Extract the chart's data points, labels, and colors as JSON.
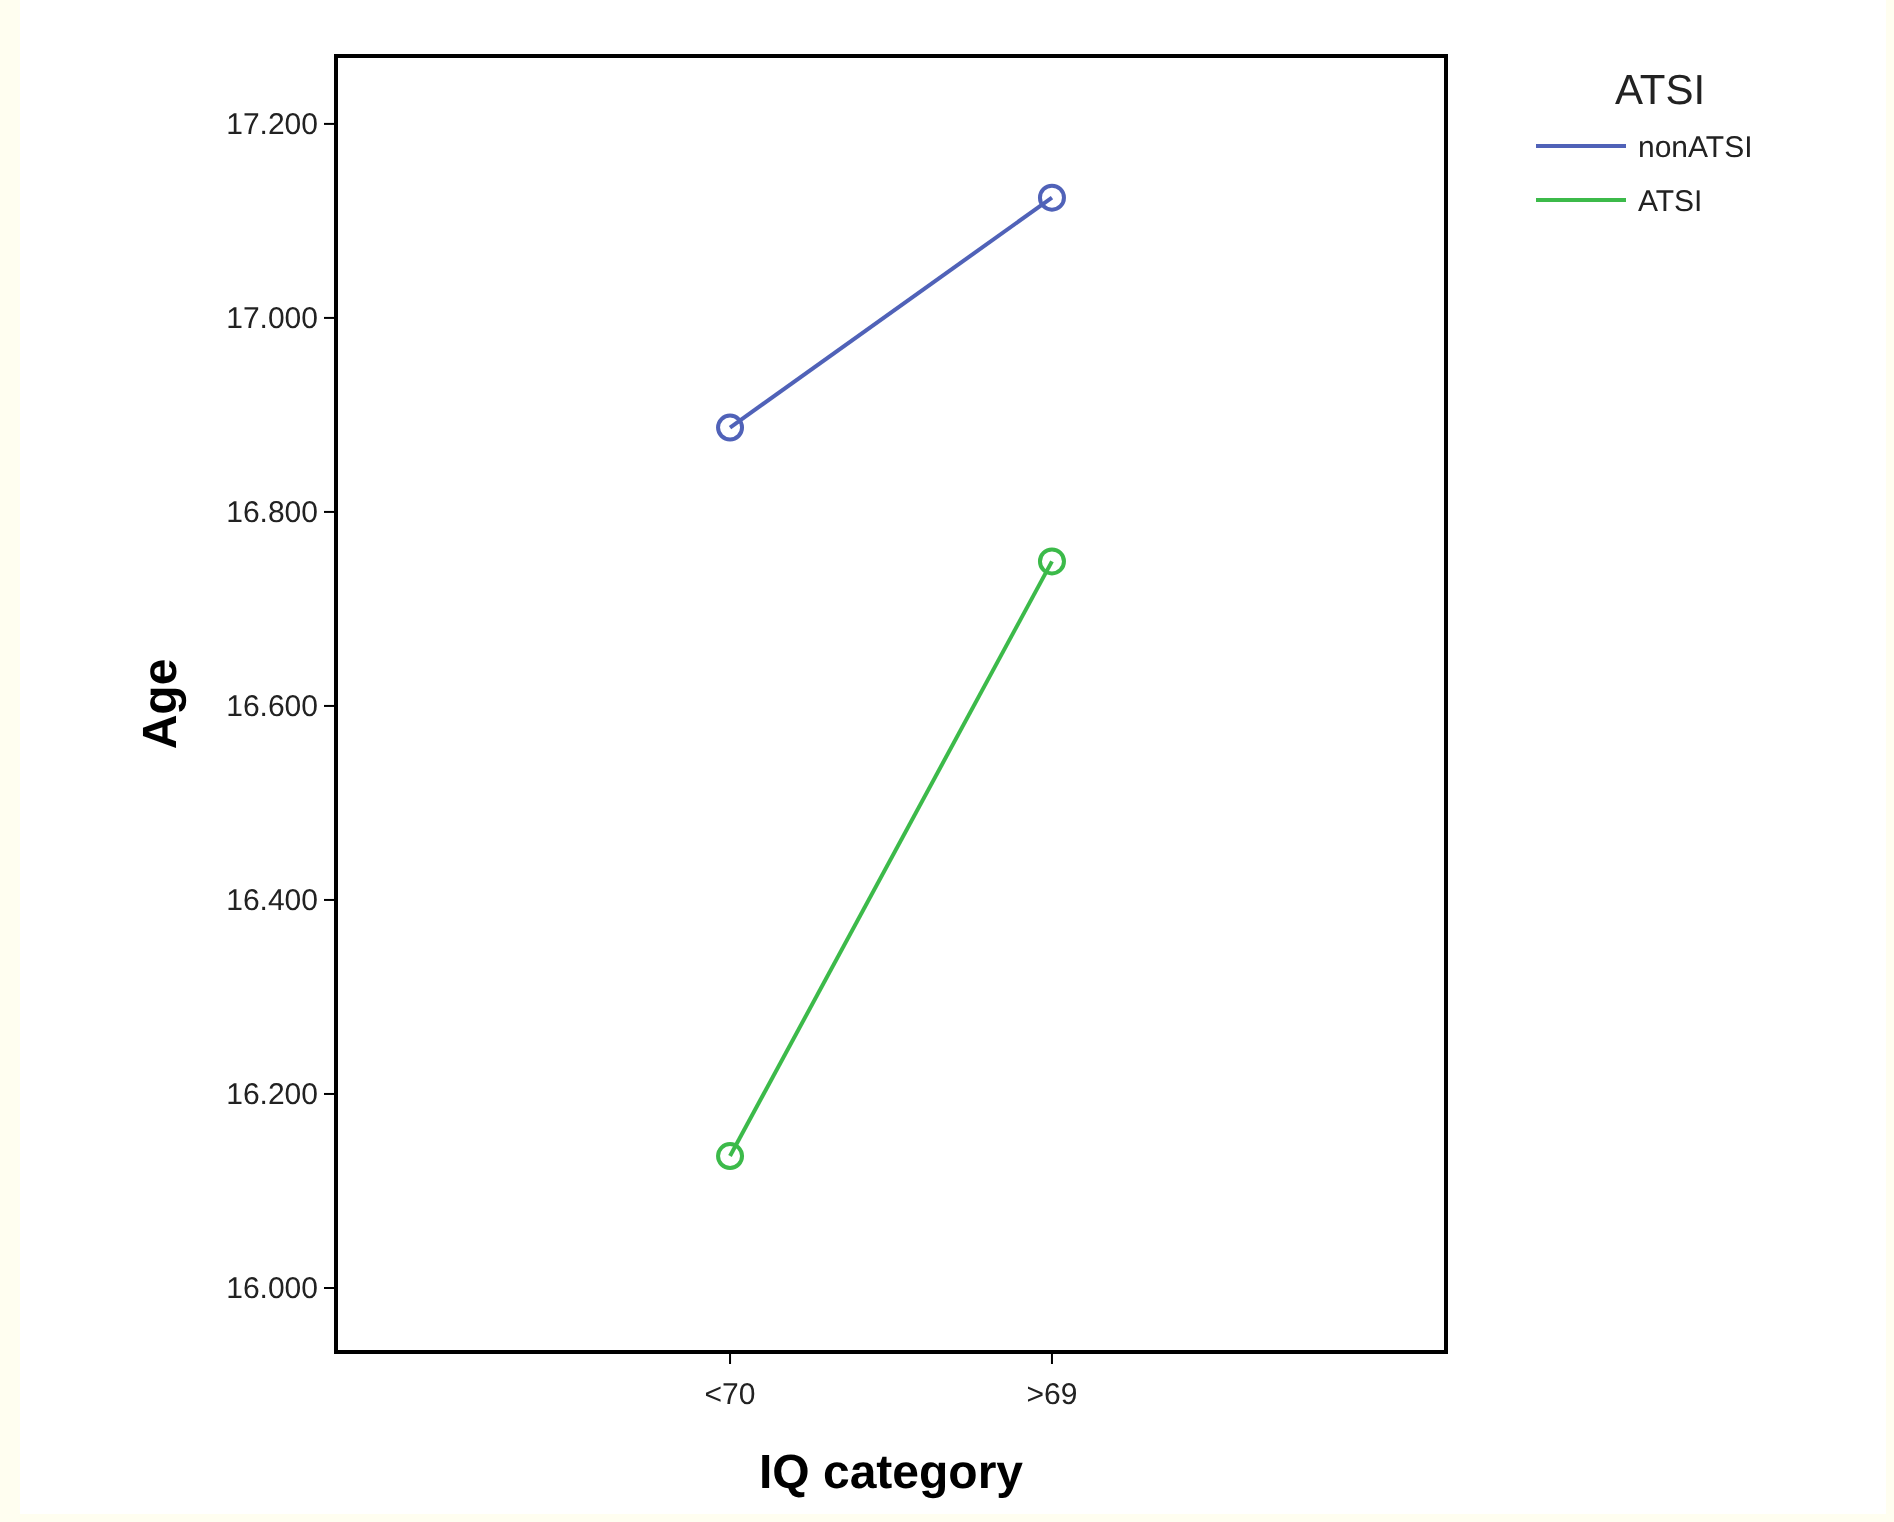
{
  "chart_data": {
    "type": "line",
    "xlabel": "IQ category",
    "ylabel": "Age",
    "legend_title": "ATSI",
    "categories": [
      "<70",
      ">69"
    ],
    "series": [
      {
        "name": "nonATSI",
        "color": "#5062b8",
        "values": [
          16.887,
          17.124
        ]
      },
      {
        "name": "ATSI",
        "color": "#3cba4a",
        "values": [
          16.136,
          16.749
        ]
      }
    ],
    "ylim": [
      15.934,
      17.27
    ],
    "yticks": [
      {
        "value": 16,
        "label": "16.000"
      },
      {
        "value": 16.2,
        "label": "16.200"
      },
      {
        "value": 16.4,
        "label": "16.400"
      },
      {
        "value": 16.6,
        "label": "16.600"
      },
      {
        "value": 16.8,
        "label": "16.800"
      },
      {
        "value": 17,
        "label": "17.000"
      },
      {
        "value": 17.2,
        "label": "17.200"
      }
    ],
    "legend": "top right",
    "marker": "circle",
    "line_style": "solid",
    "grid": false
  }
}
